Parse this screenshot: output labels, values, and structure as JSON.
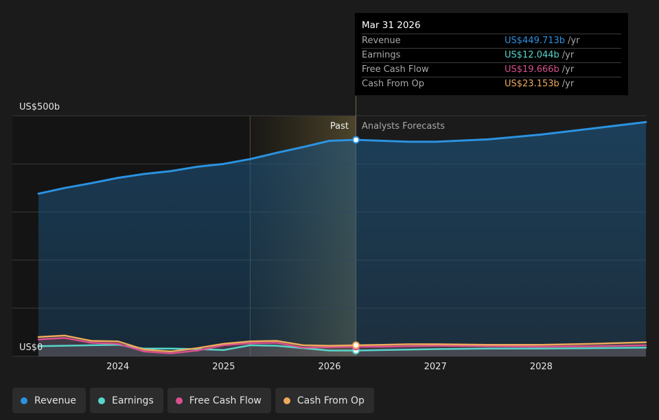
{
  "chart_data": {
    "type": "area",
    "y_axis": {
      "top_label": "US$500b",
      "bottom_label": "US$0",
      "ylim": [
        0,
        500
      ],
      "grid": true
    },
    "x_axis": {
      "tick_labels": [
        "2024",
        "2025",
        "2026",
        "2027",
        "2028"
      ],
      "tick_years": [
        2024,
        2025,
        2026,
        2027,
        2028
      ],
      "xlim": [
        2023.25,
        2028.99
      ]
    },
    "divider": {
      "date": 2026.25,
      "past_label": "Past",
      "forecast_label": "Analysts Forecasts"
    },
    "series": [
      {
        "key": "revenue",
        "name": "Revenue",
        "color": "#2b93e1",
        "points": [
          [
            2023.25,
            338
          ],
          [
            2023.5,
            350
          ],
          [
            2023.75,
            360
          ],
          [
            2024.0,
            371
          ],
          [
            2024.25,
            379
          ],
          [
            2024.5,
            385
          ],
          [
            2024.75,
            394
          ],
          [
            2025.0,
            400
          ],
          [
            2025.25,
            410
          ],
          [
            2025.5,
            423
          ],
          [
            2025.75,
            435
          ],
          [
            2026.0,
            448
          ],
          [
            2026.25,
            450
          ],
          [
            2026.5,
            448
          ],
          [
            2026.75,
            446
          ],
          [
            2027.0,
            446
          ],
          [
            2027.5,
            451
          ],
          [
            2028.0,
            461
          ],
          [
            2028.5,
            474
          ],
          [
            2028.99,
            487
          ]
        ]
      },
      {
        "key": "earnings",
        "name": "Earnings",
        "color": "#58d6cb",
        "points": [
          [
            2023.25,
            21
          ],
          [
            2023.5,
            22
          ],
          [
            2023.75,
            23
          ],
          [
            2024.0,
            24
          ],
          [
            2024.25,
            16
          ],
          [
            2024.5,
            16
          ],
          [
            2024.75,
            15
          ],
          [
            2025.0,
            13
          ],
          [
            2025.25,
            23
          ],
          [
            2025.5,
            22
          ],
          [
            2025.75,
            17
          ],
          [
            2026.0,
            12
          ],
          [
            2026.25,
            12
          ],
          [
            2026.5,
            13
          ],
          [
            2026.75,
            14
          ],
          [
            2027.0,
            15
          ],
          [
            2027.5,
            16
          ],
          [
            2028.0,
            16
          ],
          [
            2028.5,
            17
          ],
          [
            2028.99,
            18
          ]
        ]
      },
      {
        "key": "fcf",
        "name": "Free Cash Flow",
        "color": "#d9508f",
        "points": [
          [
            2023.25,
            35
          ],
          [
            2023.5,
            38
          ],
          [
            2023.75,
            28
          ],
          [
            2024.0,
            26
          ],
          [
            2024.25,
            10
          ],
          [
            2024.5,
            6
          ],
          [
            2024.75,
            12
          ],
          [
            2025.0,
            23
          ],
          [
            2025.25,
            27
          ],
          [
            2025.5,
            28
          ],
          [
            2025.75,
            18
          ],
          [
            2026.0,
            19
          ],
          [
            2026.25,
            20
          ],
          [
            2026.5,
            20
          ],
          [
            2026.75,
            21
          ],
          [
            2027.0,
            22
          ],
          [
            2027.5,
            21
          ],
          [
            2028.0,
            20
          ],
          [
            2028.5,
            21
          ],
          [
            2028.99,
            23
          ]
        ]
      },
      {
        "key": "cfo",
        "name": "Cash From Op",
        "color": "#eeaa5c",
        "points": [
          [
            2023.25,
            40
          ],
          [
            2023.5,
            43
          ],
          [
            2023.75,
            32
          ],
          [
            2024.0,
            31
          ],
          [
            2024.25,
            14
          ],
          [
            2024.5,
            10
          ],
          [
            2024.75,
            17
          ],
          [
            2025.0,
            26
          ],
          [
            2025.25,
            31
          ],
          [
            2025.5,
            32
          ],
          [
            2025.75,
            23
          ],
          [
            2026.0,
            22
          ],
          [
            2026.25,
            23
          ],
          [
            2026.5,
            24
          ],
          [
            2026.75,
            25
          ],
          [
            2027.0,
            25
          ],
          [
            2027.5,
            24
          ],
          [
            2028.0,
            24
          ],
          [
            2028.5,
            26
          ],
          [
            2028.99,
            29
          ]
        ]
      }
    ]
  },
  "tooltip": {
    "date": "Mar 31 2026",
    "rows": [
      {
        "label": "Revenue",
        "value": "US$449.713b",
        "unit": "/yr",
        "color": "#2b93e1"
      },
      {
        "label": "Earnings",
        "value": "US$12.044b",
        "unit": "/yr",
        "color": "#58d6cb"
      },
      {
        "label": "Free Cash Flow",
        "value": "US$19.666b",
        "unit": "/yr",
        "color": "#d9508f"
      },
      {
        "label": "Cash From Op",
        "value": "US$23.153b",
        "unit": "/yr",
        "color": "#eeaa5c"
      }
    ]
  },
  "legend": [
    {
      "label": "Revenue",
      "color": "#2b93e1"
    },
    {
      "label": "Earnings",
      "color": "#58d6cb"
    },
    {
      "label": "Free Cash Flow",
      "color": "#d9508f"
    },
    {
      "label": "Cash From Op",
      "color": "#eeaa5c"
    }
  ]
}
